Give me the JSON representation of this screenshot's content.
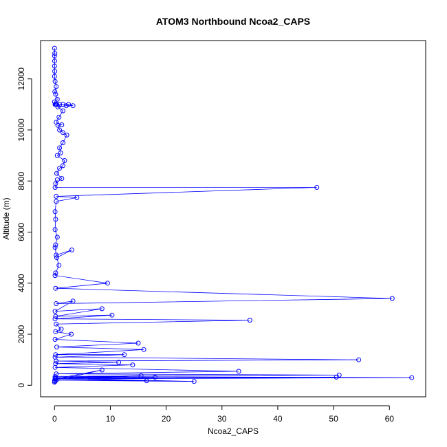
{
  "chart_data": {
    "type": "line",
    "title": "ATOM3 Northbound Ncoa2_CAPS",
    "xlabel": "Ncoa2_CAPS",
    "ylabel": "Altitude (m)",
    "xlim": [
      -2.5,
      66.5
    ],
    "ylim": [
      -450,
      13500
    ],
    "xticks": [
      0,
      10,
      20,
      30,
      40,
      50,
      60
    ],
    "yticks": [
      0,
      2000,
      4000,
      6000,
      8000,
      10000,
      12000
    ],
    "grid": false,
    "legend": "none",
    "marker": "open-circle",
    "color": "#0000ff",
    "series": [
      {
        "x": [
          0,
          0.05,
          0,
          0.02,
          0,
          0.04,
          0,
          0.1,
          0.3,
          0.05,
          0.2,
          0.5,
          0,
          0.2,
          0.4,
          0.1,
          0.9,
          0.3,
          1.5,
          2.5,
          3.3,
          2.1,
          0.6,
          1.5,
          0.8,
          0.3,
          1.3,
          0.6,
          0.9,
          1.5,
          2.2,
          1.5,
          0.9,
          1.1,
          0.5,
          1.8,
          1.5,
          0.9,
          0.4,
          1.3,
          0.2,
          0.5,
          0.1,
          47,
          0.3,
          4,
          0.3,
          0.1,
          0.2,
          0.1,
          0.5,
          0.2,
          0.1,
          0.3,
          3.1,
          0.4,
          0.8,
          0.2,
          0.1,
          9.5,
          0.2,
          60.5,
          0.3,
          3.3,
          0.1,
          8.5,
          0.2,
          10.3,
          0.1,
          35,
          0.3,
          1.2,
          0.2,
          3,
          0.1,
          15,
          0.4,
          16,
          0.2,
          12.5,
          0.1,
          54.5,
          0.3,
          11.5,
          0.2,
          14,
          0.1,
          33,
          0.3,
          51,
          0.1,
          64,
          0.2,
          50.5,
          0.1,
          25,
          0.3,
          16.5,
          0.1,
          15.5,
          0.2,
          18,
          0.1,
          8.5,
          0,
          0.1,
          0
        ],
        "y": [
          13200,
          13000,
          12900,
          12700,
          12500,
          12300,
          12100,
          11900,
          11700,
          11500,
          11400,
          11200,
          11100,
          11000,
          11000,
          11000,
          11000,
          11000,
          11000,
          11000,
          10950,
          10950,
          10900,
          10750,
          10500,
          10300,
          10200,
          10180,
          10000,
          9900,
          9800,
          9500,
          9300,
          9100,
          9000,
          8800,
          8600,
          8500,
          8300,
          8100,
          7900,
          8050,
          7750,
          7750,
          7400,
          7350,
          7200,
          6800,
          6500,
          6100,
          5800,
          5500,
          5400,
          5100,
          5300,
          5000,
          4700,
          4400,
          4300,
          4000,
          3800,
          3400,
          3200,
          3300,
          2900,
          3000,
          2700,
          2750,
          2600,
          2550,
          2400,
          2200,
          2100,
          2000,
          1800,
          1650,
          1500,
          1400,
          1200,
          1200,
          1100,
          1000,
          950,
          900,
          850,
          800,
          700,
          550,
          450,
          400,
          350,
          300,
          250,
          320,
          280,
          150,
          200,
          180,
          250,
          380,
          300,
          320,
          250,
          600,
          180,
          150,
          120
        ]
      }
    ]
  }
}
